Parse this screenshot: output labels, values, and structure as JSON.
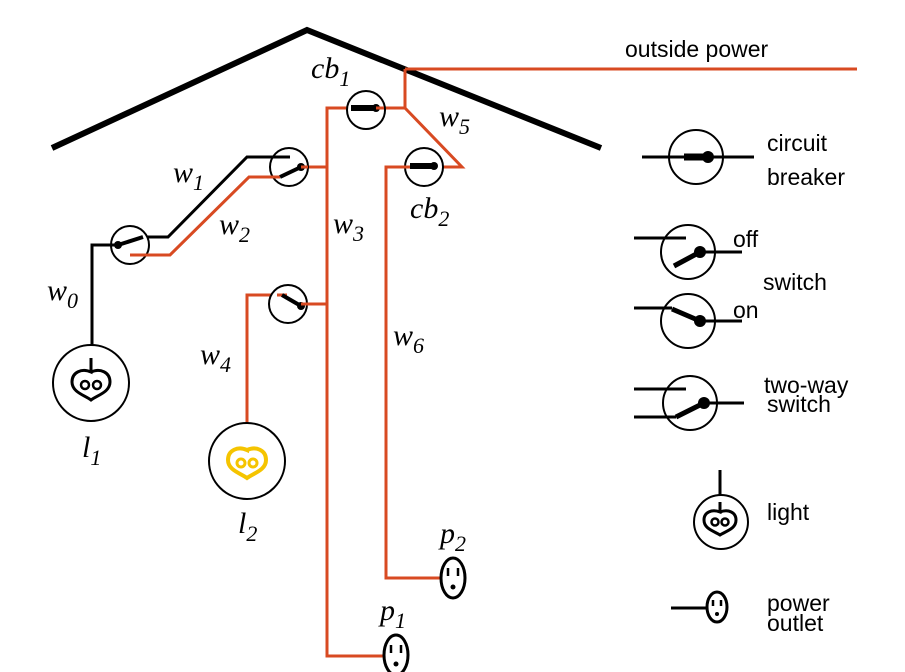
{
  "labels": {
    "outside_power": "outside power",
    "cb1": "cb",
    "cb1_sub": "1",
    "cb2": "cb",
    "cb2_sub": "2",
    "w0": "w",
    "w0_sub": "0",
    "w1": "w",
    "w1_sub": "1",
    "w2": "w",
    "w2_sub": "2",
    "w3": "w",
    "w3_sub": "3",
    "w4": "w",
    "w4_sub": "4",
    "w5": "w",
    "w5_sub": "5",
    "w6": "w",
    "w6_sub": "6",
    "l1": "l",
    "l1_sub": "1",
    "l2": "l",
    "l2_sub": "2",
    "p1": "p",
    "p1_sub": "1",
    "p2": "p",
    "p2_sub": "2"
  },
  "legend": {
    "circuit_breaker_line1": "circuit",
    "circuit_breaker_line2": "breaker",
    "off": "off",
    "switch": "switch",
    "on": "on",
    "two_way_line1": "two-way",
    "two_way_line2": "switch",
    "light": "light",
    "power_outlet_line1": "power",
    "power_outlet_line2": "outlet"
  },
  "colors": {
    "live_wire": "#d84a22",
    "dead_wire": "#000000",
    "lit_bulb": "#f5c400"
  }
}
